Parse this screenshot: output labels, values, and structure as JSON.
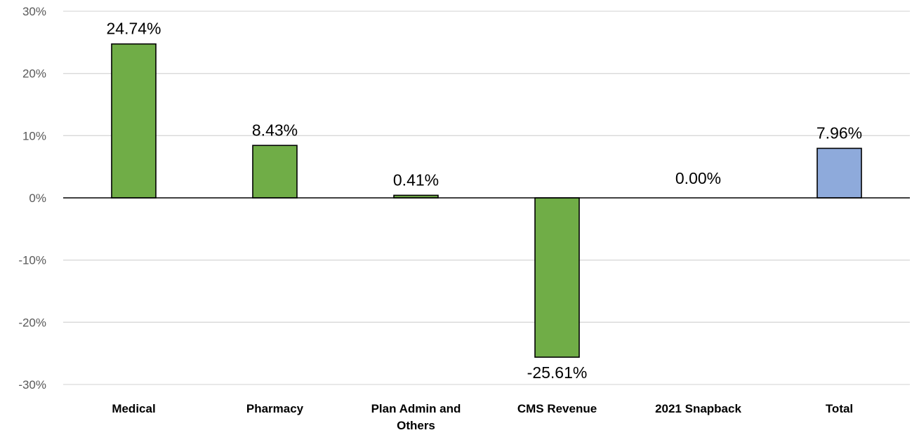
{
  "chart_data": {
    "type": "bar",
    "title": "",
    "xlabel": "",
    "ylabel": "",
    "categories": [
      [
        "Medical"
      ],
      [
        "Pharmacy"
      ],
      [
        "Plan Admin and",
        "Others"
      ],
      [
        "CMS Revenue"
      ],
      [
        "2021 Snapback"
      ],
      [
        "Total"
      ]
    ],
    "values": [
      24.74,
      8.43,
      0.41,
      -25.61,
      0.0,
      7.96
    ],
    "data_labels": [
      "24.74%",
      "8.43%",
      "0.41%",
      "-25.61%",
      "0.00%",
      "7.96%"
    ],
    "ylim": [
      -30,
      30
    ],
    "yticks": [
      30,
      20,
      10,
      0,
      -10,
      -20,
      -30
    ],
    "ytick_labels": [
      "30%",
      "20%",
      "10%",
      "0%",
      "-10%",
      "-20%",
      "-30%"
    ],
    "grid": true,
    "legend": "none",
    "colors": {
      "component": "#70ad47",
      "total": "#8eaadb",
      "gridline": "#d9d9d9",
      "axis": "#000000"
    },
    "bar_colors": [
      "#70ad47",
      "#70ad47",
      "#70ad47",
      "#70ad47",
      "#70ad47",
      "#8eaadb"
    ]
  }
}
